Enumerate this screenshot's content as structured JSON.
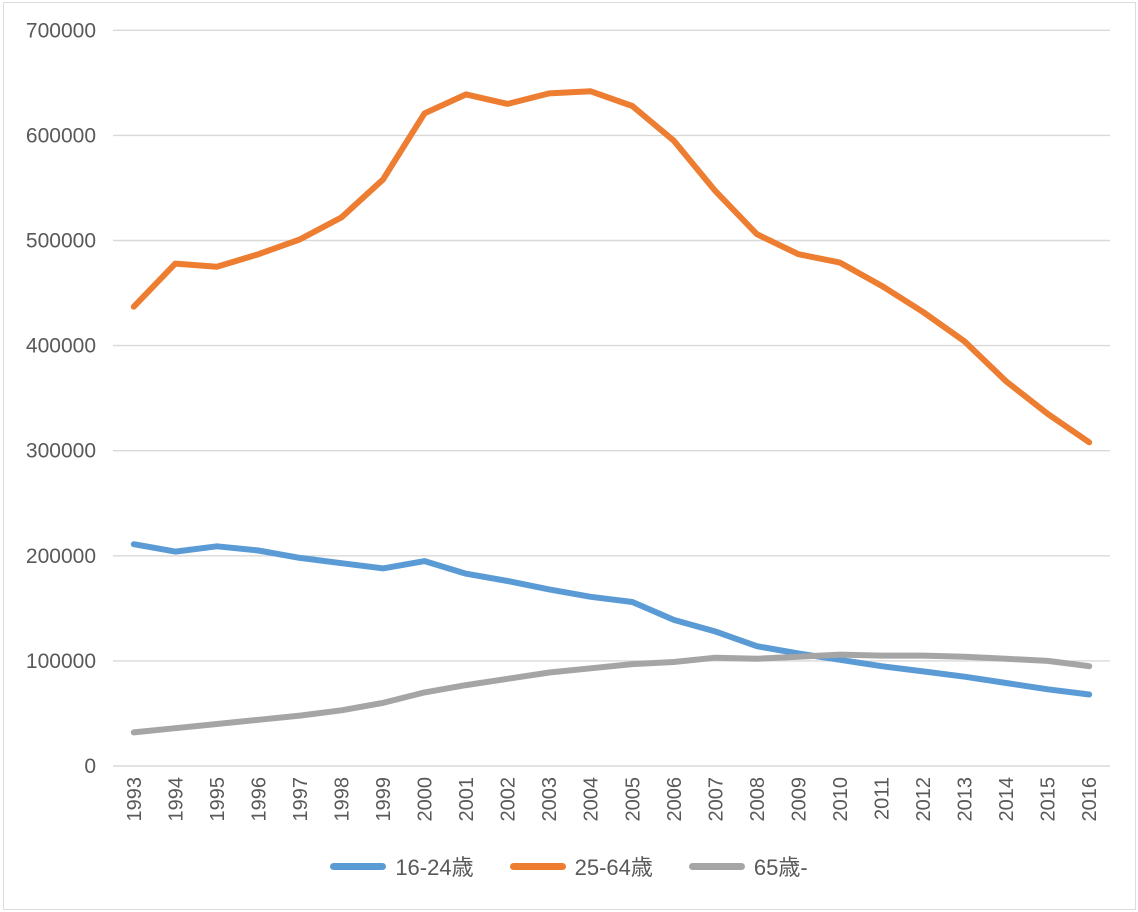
{
  "chart_data": {
    "type": "line",
    "title": "",
    "xlabel": "",
    "ylabel": "",
    "categories": [
      "1993",
      "1994",
      "1995",
      "1996",
      "1997",
      "1998",
      "1999",
      "2000",
      "2001",
      "2002",
      "2003",
      "2004",
      "2005",
      "2006",
      "2007",
      "2008",
      "2009",
      "2010",
      "2011",
      "2012",
      "2013",
      "2014",
      "2015",
      "2016"
    ],
    "series": [
      {
        "name": "16-24歳",
        "color": "#5B9BD5",
        "values": [
          211000,
          204000,
          209000,
          205000,
          198000,
          193000,
          188000,
          195000,
          183000,
          176000,
          168000,
          161000,
          156000,
          139000,
          128000,
          114000,
          107000,
          101000,
          95000,
          90000,
          85000,
          79000,
          73000,
          68000
        ]
      },
      {
        "name": "25-64歳",
        "color": "#ED7D31",
        "values": [
          437000,
          478000,
          475000,
          487000,
          501000,
          522000,
          558000,
          621000,
          639000,
          630000,
          640000,
          642000,
          628000,
          595000,
          547000,
          506000,
          487000,
          479000,
          457000,
          432000,
          404000,
          366000,
          335000,
          308000
        ]
      },
      {
        "name": "65歳-",
        "color": "#A5A5A5",
        "values": [
          32000,
          36000,
          40000,
          44000,
          48000,
          53000,
          60000,
          70000,
          77000,
          83000,
          89000,
          93000,
          97000,
          99000,
          103000,
          102000,
          104000,
          106000,
          105000,
          105000,
          104000,
          102000,
          100000,
          95000
        ]
      }
    ],
    "y_axis": {
      "min": 0,
      "max": 700000,
      "step": 100000,
      "tick_labels": [
        "0",
        "100000",
        "200000",
        "300000",
        "400000",
        "500000",
        "600000",
        "700000"
      ]
    },
    "x_axis": {
      "label_rotation_deg": -90
    },
    "grid": "horizontal",
    "legend_position": "bottom",
    "colors": {
      "grid": "#D9D9D9",
      "axis_text": "#595959",
      "background": "#FFFFFF"
    }
  }
}
